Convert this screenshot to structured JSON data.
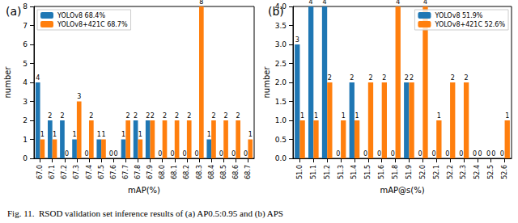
{
  "caption": "Fig. 11.  RSOD validation set inference results of (a) AP0.5:0.95 and (b) APS",
  "chart_data": [
    {
      "type": "bar",
      "title": "(a)",
      "x_label": "mAP(%)",
      "y_label": "number",
      "categories": [
        "67.0",
        "67.1",
        "67.2",
        "67.3",
        "67.4",
        "67.5",
        "67.6",
        "67.7",
        "67.8",
        "67.9",
        "68.0",
        "68.1",
        "68.2",
        "68.3",
        "68.4",
        "68.5",
        "68.6",
        "68.7"
      ],
      "series": [
        {
          "name": "YOLOv8 68.4%",
          "color": "#1f77b4",
          "values": [
            4,
            2,
            2,
            1,
            0,
            1,
            0,
            1,
            2,
            2,
            0,
            0,
            0,
            0,
            1,
            0,
            0,
            0
          ]
        },
        {
          "name": "YOLOv8+421C 68.7%",
          "color": "#ff7f0e",
          "values": [
            1,
            1,
            0,
            3,
            2,
            1,
            0,
            2,
            1,
            2,
            2,
            2,
            2,
            8,
            2,
            2,
            2,
            1
          ]
        }
      ],
      "ylim": [
        0,
        8
      ],
      "yticks": [
        0,
        1,
        2,
        3,
        4,
        5,
        6,
        7,
        8
      ],
      "grid": false,
      "legend": "upper left",
      "data_labels": true
    },
    {
      "type": "bar",
      "title": "(b)",
      "x_label": "mAP@s(%)",
      "y_label": "number",
      "categories": [
        "51.0",
        "51.1",
        "51.2",
        "51.3",
        "51.4",
        "51.5",
        "51.6",
        "51.8",
        "51.9",
        "52.0",
        "52.1",
        "52.2",
        "52.3",
        "52.4",
        "52.5",
        "52.6"
      ],
      "series": [
        {
          "name": "YOLOv8 51.9%",
          "color": "#1f77b4",
          "values": [
            3,
            4,
            4,
            0,
            2,
            0,
            0,
            0,
            2,
            0,
            0,
            0,
            0,
            0,
            0,
            0
          ]
        },
        {
          "name": "YOLOv8+421C 52.6%",
          "color": "#ff7f0e",
          "values": [
            1,
            1,
            2,
            1,
            1,
            2,
            2,
            4,
            2,
            4,
            1,
            2,
            2,
            0,
            0,
            1
          ]
        }
      ],
      "ylim": [
        0,
        4
      ],
      "yticks": [
        {
          "value": 0,
          "label": "0.0"
        },
        {
          "value": 0.5,
          "label": "0.5"
        },
        {
          "value": 1,
          "label": "1.0"
        },
        {
          "value": 1.5,
          "label": "1.5"
        },
        {
          "value": 2,
          "label": "2.0"
        },
        {
          "value": 2.5,
          "label": "2.5"
        },
        {
          "value": 3,
          "label": "3.0"
        },
        {
          "value": 3.5,
          "label": "3.5"
        },
        {
          "value": 4,
          "label": "4.0"
        }
      ],
      "grid": false,
      "legend": "upper right",
      "data_labels": true
    }
  ]
}
